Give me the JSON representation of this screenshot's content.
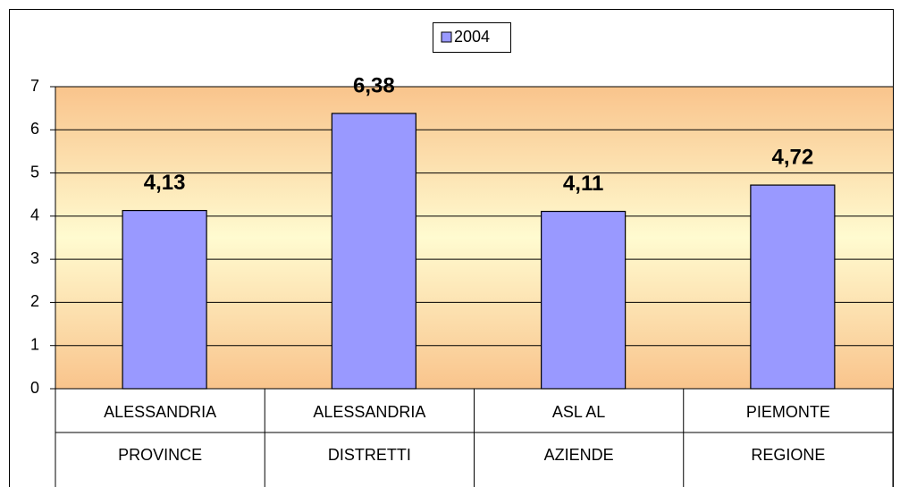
{
  "chart_data": {
    "type": "bar",
    "categories": [
      [
        "ALESSANDRIA",
        "PROVINCE"
      ],
      [
        "ALESSANDRIA",
        "DISTRETTI"
      ],
      [
        "ASL AL",
        "AZIENDE"
      ],
      [
        "PIEMONTE",
        "REGIONE"
      ]
    ],
    "series": [
      {
        "name": "2004",
        "color": "#9999ff",
        "values": [
          4.13,
          6.38,
          4.11,
          4.72
        ],
        "value_labels": [
          "4,13",
          "6,38",
          "4,11",
          "4,72"
        ]
      }
    ],
    "ylim": [
      0,
      7
    ],
    "yticks": [
      0,
      1,
      2,
      3,
      4,
      5,
      6,
      7
    ],
    "grid": true,
    "legend": "top"
  }
}
